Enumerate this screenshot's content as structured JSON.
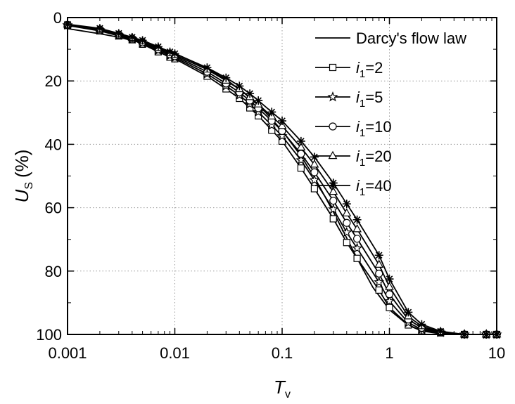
{
  "chart_data": {
    "type": "line",
    "xlabel": "T",
    "xlabel_sub": "v",
    "ylabel": "U",
    "ylabel_sub": "S",
    "ylabel_unit": "(%)",
    "x_scale": "log",
    "xlim": [
      0.001,
      10
    ],
    "ylim": [
      100,
      0
    ],
    "y_inverted": true,
    "grid": true,
    "legend_position": "top-right",
    "x_ticks": [
      {
        "value": 0.001,
        "label": "0.001"
      },
      {
        "value": 0.01,
        "label": "0.01"
      },
      {
        "value": 0.1,
        "label": "0.1"
      },
      {
        "value": 1,
        "label": "1"
      },
      {
        "value": 10,
        "label": "10"
      }
    ],
    "y_ticks": [
      {
        "value": 0,
        "label": "0"
      },
      {
        "value": 20,
        "label": "20"
      },
      {
        "value": 40,
        "label": "40"
      },
      {
        "value": 60,
        "label": "60"
      },
      {
        "value": 80,
        "label": "80"
      },
      {
        "value": 100,
        "label": "100"
      }
    ],
    "series": [
      {
        "name": "Darcy's flow law",
        "name_parts": [
          "Darcy's flow law"
        ],
        "marker": "none",
        "x": [
          0.001,
          0.002,
          0.003,
          0.005,
          0.007,
          0.01,
          0.02,
          0.03,
          0.05,
          0.07,
          0.1,
          0.15,
          0.2,
          0.3,
          0.5,
          0.7,
          1,
          1.5,
          2,
          3,
          5,
          10
        ],
        "y": [
          3.5,
          5.1,
          6.2,
          8.0,
          9.4,
          11.3,
          16.0,
          19.5,
          25.2,
          29.9,
          35.7,
          43.7,
          50.4,
          61.3,
          76.0,
          85.1,
          92.2,
          97.1,
          98.9,
          99.8,
          100,
          100
        ]
      },
      {
        "name": "i1=2",
        "name_parts": [
          "i",
          "1",
          "=2"
        ],
        "marker": "square",
        "x": [
          0.001,
          0.002,
          0.003,
          0.004,
          0.005,
          0.007,
          0.009,
          0.01,
          0.02,
          0.03,
          0.04,
          0.05,
          0.06,
          0.08,
          0.1,
          0.15,
          0.2,
          0.3,
          0.4,
          0.5,
          0.8,
          1,
          1.5,
          2,
          3,
          5,
          8,
          10
        ],
        "y": [
          2.5,
          4.2,
          5.8,
          7.0,
          8.4,
          10.8,
          12.5,
          13.0,
          18.5,
          22.5,
          25.5,
          28.5,
          31.0,
          35.5,
          39.0,
          47.5,
          54.0,
          63.5,
          71.0,
          76.0,
          86.0,
          91.5,
          97.0,
          98.8,
          99.5,
          100,
          100,
          100
        ]
      },
      {
        "name": "i1=5",
        "name_parts": [
          "i",
          "1",
          "=5"
        ],
        "marker": "star",
        "x": [
          0.001,
          0.002,
          0.003,
          0.004,
          0.005,
          0.007,
          0.009,
          0.01,
          0.02,
          0.03,
          0.04,
          0.05,
          0.06,
          0.08,
          0.1,
          0.15,
          0.2,
          0.3,
          0.4,
          0.5,
          0.8,
          1,
          1.5,
          2,
          3,
          5,
          8,
          10
        ],
        "y": [
          2.4,
          4.0,
          5.6,
          6.8,
          8.1,
          10.4,
          12.0,
          12.6,
          17.8,
          21.6,
          24.5,
          27.3,
          29.8,
          34.0,
          37.4,
          45.0,
          51.3,
          60.5,
          67.8,
          72.8,
          83.5,
          89.5,
          96.3,
          98.4,
          99.4,
          100,
          100,
          100
        ]
      },
      {
        "name": "i1=10",
        "name_parts": [
          "i",
          "1",
          "=10"
        ],
        "marker": "circle",
        "x": [
          0.001,
          0.002,
          0.003,
          0.004,
          0.005,
          0.007,
          0.009,
          0.01,
          0.02,
          0.03,
          0.04,
          0.05,
          0.06,
          0.08,
          0.1,
          0.15,
          0.2,
          0.3,
          0.4,
          0.5,
          0.8,
          1,
          1.5,
          2,
          3,
          5,
          8,
          10
        ],
        "y": [
          2.3,
          3.8,
          5.4,
          6.6,
          7.8,
          10.0,
          11.6,
          12.2,
          17.1,
          20.8,
          23.6,
          26.2,
          28.6,
          32.6,
          35.8,
          43.0,
          48.8,
          57.8,
          64.8,
          69.8,
          80.8,
          87.3,
          95.3,
          97.9,
          99.3,
          100,
          100,
          100
        ]
      },
      {
        "name": "i1=20",
        "name_parts": [
          "i",
          "1",
          "=20"
        ],
        "marker": "triangle",
        "x": [
          0.001,
          0.002,
          0.003,
          0.004,
          0.005,
          0.007,
          0.009,
          0.01,
          0.02,
          0.03,
          0.04,
          0.05,
          0.06,
          0.08,
          0.1,
          0.15,
          0.2,
          0.3,
          0.4,
          0.5,
          0.8,
          1,
          1.5,
          2,
          3,
          5,
          8,
          10
        ],
        "y": [
          2.2,
          3.6,
          5.2,
          6.4,
          7.5,
          9.6,
          11.2,
          11.8,
          16.4,
          19.9,
          22.6,
          25.1,
          27.4,
          31.2,
          34.2,
          41.0,
          46.4,
          55.0,
          61.8,
          66.8,
          78.0,
          85.0,
          94.3,
          97.4,
          99.2,
          100,
          100,
          100
        ]
      },
      {
        "name": "i1=40",
        "name_parts": [
          "i",
          "1",
          "=40"
        ],
        "marker": "asterisk",
        "x": [
          0.001,
          0.002,
          0.003,
          0.004,
          0.005,
          0.007,
          0.009,
          0.01,
          0.02,
          0.03,
          0.04,
          0.05,
          0.06,
          0.08,
          0.1,
          0.15,
          0.2,
          0.3,
          0.4,
          0.5,
          0.8,
          1,
          1.5,
          2,
          3,
          5,
          8,
          10
        ],
        "y": [
          2.1,
          3.4,
          5.0,
          6.2,
          7.2,
          9.2,
          10.8,
          11.4,
          15.8,
          19.0,
          21.6,
          24.0,
          26.2,
          29.8,
          32.6,
          39.0,
          44.0,
          52.2,
          58.8,
          63.8,
          75.0,
          82.5,
          93.0,
          96.8,
          99.0,
          100,
          100,
          100
        ]
      }
    ]
  }
}
